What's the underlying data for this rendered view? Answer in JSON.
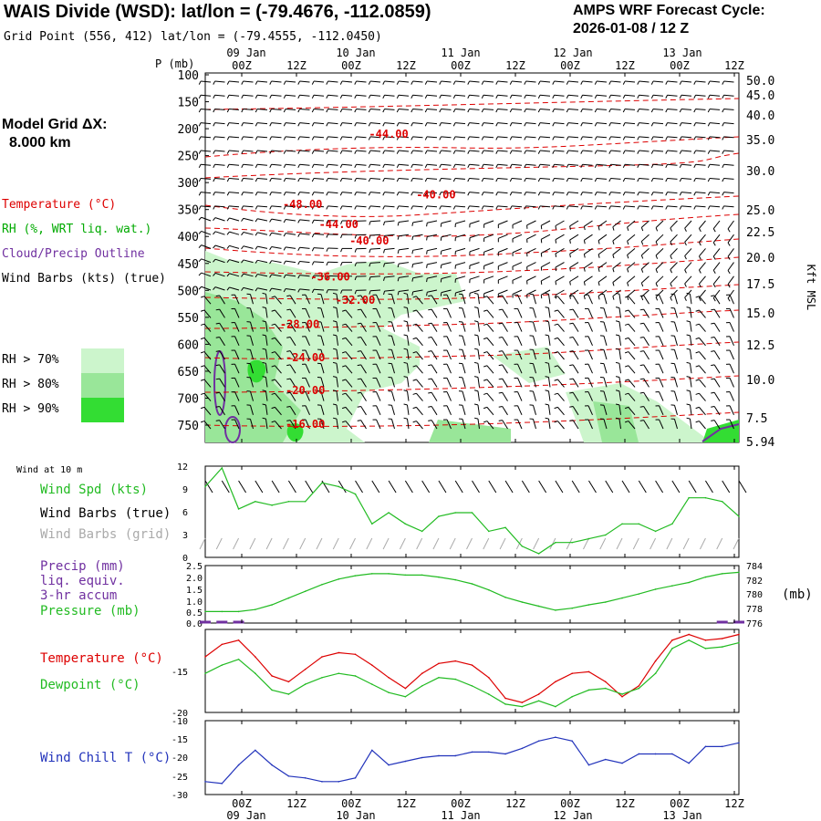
{
  "header": {
    "station": "WAIS Divide (WSD):  lat/lon = (-79.4676, -112.0859)",
    "grid_point": "Grid Point (556, 412) lat/lon = (-79.4555, -112.0450)",
    "cycle_title": "AMPS WRF Forecast Cycle:",
    "cycle": "2026-01-08 / 12  Z",
    "model_grid_label": "Model Grid ΔX:",
    "model_grid_value": "8.000 km"
  },
  "time_axis": {
    "hours": [
      "00Z",
      "12Z",
      "00Z",
      "12Z",
      "00Z",
      "12Z",
      "00Z",
      "12Z",
      "00Z",
      "12Z"
    ],
    "days": [
      "09 Jan",
      "10 Jan",
      "11 Jan",
      "12 Jan",
      "13 Jan"
    ]
  },
  "legend": {
    "temperature": "Temperature (°C)",
    "rh": "RH (%, WRT liq. wat.)",
    "cloud": "Cloud/Precip Outline",
    "wind_barbs": "Wind Barbs (kts) (true)",
    "rh70": "RH > 70%",
    "rh80": "RH > 80%",
    "rh90": "RH > 90%",
    "colors": {
      "temperature": "#dd0000",
      "rh": "#00aa00",
      "cloud": "#7030a0",
      "rh70": "#ccf5cc",
      "rh80": "#99e699",
      "rh90": "#33dd33"
    }
  },
  "chart_data": [
    {
      "type": "heatmap",
      "ylabel": "P (mb)",
      "y2label": "Kft MSL",
      "pressure_levels": [
        "100",
        "150",
        "200",
        "250",
        "300",
        "350",
        "400",
        "450",
        "500",
        "550",
        "600",
        "650",
        "700",
        "750"
      ],
      "kft_levels": [
        "50.0",
        "45.0",
        "40.0",
        "35.0",
        "30.0",
        "25.0",
        "22.5",
        "20.0",
        "17.5",
        "15.0",
        "12.5",
        "10.0",
        "7.5",
        "5.94"
      ],
      "isotherm_labels": [
        {
          "label": "-44.00",
          "t": 33.0,
          "p": 210
        },
        {
          "label": "-40.00",
          "t": 41.5,
          "p": 323
        },
        {
          "label": "-48.00",
          "t": 17.5,
          "p": 340
        },
        {
          "label": "-44.00",
          "t": 24.0,
          "p": 378
        },
        {
          "label": "-40.00",
          "t": 29.5,
          "p": 408
        },
        {
          "label": "-36.00",
          "t": 22.5,
          "p": 475
        },
        {
          "label": "-32.00",
          "t": 27.0,
          "p": 518
        },
        {
          "label": "-28.00",
          "t": 17.0,
          "p": 563
        },
        {
          "label": "-24.00",
          "t": 18.0,
          "p": 625
        },
        {
          "label": "-20.00",
          "t": 18.0,
          "p": 686
        },
        {
          "label": "-16.00",
          "t": 18.0,
          "p": 748
        }
      ]
    },
    {
      "type": "line",
      "title": "Wind at 10 m",
      "series": [
        {
          "name": "Wind Spd (kts)",
          "color": "#22bb22"
        }
      ],
      "extra_labels": [
        "Wind Barbs (true)",
        "Wind Barbs (grid)"
      ],
      "extra_colors": [
        "#000000",
        "#aaaaaa"
      ],
      "yticks": [
        "12",
        "9",
        "6",
        "3",
        "0"
      ],
      "ylim": [
        0,
        12
      ],
      "x": [
        0,
        3,
        6,
        9,
        12,
        15,
        18,
        21,
        24,
        27,
        30,
        33,
        36,
        39,
        42,
        45,
        48,
        51,
        54,
        57,
        60,
        63,
        66,
        69,
        72,
        75,
        78,
        81,
        84,
        87,
        90,
        93,
        96
      ],
      "values": [
        9.5,
        12,
        6.5,
        7.5,
        7,
        7.5,
        7.5,
        10,
        9.5,
        8.5,
        4.5,
        6,
        4.5,
        3.5,
        5.5,
        6,
        6,
        3.5,
        4,
        1.5,
        0.5,
        2,
        2,
        2.5,
        3,
        4.5,
        4.5,
        3.5,
        4.5,
        8,
        8,
        7.5,
        5.5
      ]
    },
    {
      "type": "line",
      "series_labels": [
        "Precip (mm)",
        "liq. equiv.",
        "3-hr accum",
        "Pressure (mb)"
      ],
      "colors": {
        "precip": "#7030a0",
        "pressure": "#22bb22"
      },
      "yticks_left": [
        "2.5",
        "2.0",
        "1.5",
        "1.0",
        "0.5",
        "0.0"
      ],
      "yticks_right": [
        "784",
        "782",
        "780",
        "778",
        "776"
      ],
      "y2label": "(mb)",
      "ylim": [
        0,
        2.5
      ],
      "y2lim": [
        775.5,
        784
      ],
      "x": [
        0,
        3,
        6,
        9,
        12,
        15,
        18,
        21,
        24,
        27,
        30,
        33,
        36,
        39,
        42,
        45,
        48,
        51,
        54,
        57,
        60,
        63,
        66,
        69,
        72,
        75,
        78,
        81,
        84,
        87,
        90,
        93,
        96
      ],
      "pressure": [
        777.2,
        777.2,
        777.2,
        777.5,
        778.2,
        779.2,
        780.2,
        781.2,
        782.0,
        782.5,
        782.8,
        782.8,
        782.6,
        782.6,
        782.3,
        781.9,
        781.3,
        780.4,
        779.3,
        778.6,
        778.0,
        777.4,
        777.7,
        778.2,
        778.6,
        779.2,
        779.8,
        780.5,
        781.0,
        781.5,
        782.3,
        782.8,
        783.0
      ],
      "precip": [
        0.02,
        0.02,
        0.02,
        0,
        0,
        0,
        0,
        0,
        0,
        0,
        0,
        0,
        0,
        0,
        0,
        0,
        0,
        0,
        0,
        0,
        0,
        0,
        0,
        0,
        0,
        0,
        0,
        0,
        0,
        0,
        0,
        0.02,
        0.02
      ]
    },
    {
      "type": "line",
      "series": [
        {
          "name": "Temperature (°C)",
          "color": "#dd0000"
        },
        {
          "name": "Dewpoint (°C)",
          "color": "#22bb22"
        }
      ],
      "yticks": [
        "-15",
        "-20"
      ],
      "ylim": [
        -20.2,
        -10.2
      ],
      "x": [
        0,
        3,
        6,
        9,
        12,
        15,
        18,
        21,
        24,
        27,
        30,
        33,
        36,
        39,
        42,
        45,
        48,
        51,
        54,
        57,
        60,
        63,
        66,
        69,
        72,
        75,
        78,
        81,
        84,
        87,
        90,
        93,
        96
      ],
      "temperature": [
        -13.5,
        -12.0,
        -11.5,
        -13.5,
        -15.8,
        -16.5,
        -15.0,
        -13.5,
        -13.0,
        -13.2,
        -14.5,
        -16.0,
        -17.3,
        -15.5,
        -14.3,
        -14.0,
        -14.5,
        -16.0,
        -18.5,
        -19.0,
        -18.0,
        -16.5,
        -15.5,
        -15.3,
        -16.5,
        -18.3,
        -17.0,
        -14.0,
        -11.5,
        -10.8,
        -11.5,
        -11.3,
        -10.8
      ],
      "dewpoint": [
        -15.5,
        -14.5,
        -13.8,
        -15.5,
        -17.5,
        -18.0,
        -16.8,
        -16.0,
        -15.5,
        -15.8,
        -16.8,
        -17.8,
        -18.3,
        -17.0,
        -16.0,
        -16.2,
        -17.0,
        -18.0,
        -19.2,
        -19.5,
        -18.8,
        -19.5,
        -18.3,
        -17.5,
        -17.3,
        -18.0,
        -17.3,
        -15.5,
        -12.5,
        -11.5,
        -12.5,
        -12.3,
        -11.8
      ]
    },
    {
      "type": "line",
      "series": [
        {
          "name": "Wind Chill T (°C)",
          "color": "#2233bb"
        }
      ],
      "yticks": [
        "-10",
        "-15",
        "-20",
        "-25",
        "-30"
      ],
      "ylim": [
        -30,
        -10
      ],
      "x": [
        0,
        3,
        6,
        9,
        12,
        15,
        18,
        21,
        24,
        27,
        30,
        33,
        36,
        39,
        42,
        45,
        48,
        51,
        54,
        57,
        60,
        63,
        66,
        69,
        72,
        75,
        78,
        81,
        84,
        87,
        90,
        93,
        96
      ],
      "values": [
        -26.5,
        -27,
        -22,
        -18,
        -22,
        -25,
        -25.5,
        -26.5,
        -26.5,
        -25.5,
        -18,
        -22,
        -21,
        -20,
        -19.5,
        -19.5,
        -18.5,
        -18.5,
        -19,
        -17.5,
        -15.5,
        -14.5,
        -15.5,
        -22,
        -20.5,
        -21.5,
        -19,
        -19,
        -19,
        -21.5,
        -17,
        -17,
        -16
      ]
    }
  ]
}
